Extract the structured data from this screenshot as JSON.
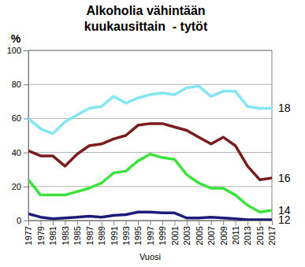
{
  "chart_data": {
    "type": "line",
    "title": "Alkoholia vähintään kuukausittain  - tytöt",
    "x_label": "Vuosi",
    "y_label": "%",
    "x": [
      1977,
      1979,
      1981,
      1983,
      1985,
      1987,
      1989,
      1991,
      1993,
      1995,
      1997,
      1999,
      2001,
      2003,
      2005,
      2007,
      2009,
      2011,
      2013,
      2015,
      2017
    ],
    "series": [
      {
        "name": "18",
        "color": "#84e6f2",
        "values": [
          60,
          54,
          51,
          58,
          62,
          66,
          67,
          73,
          69,
          72,
          74,
          75,
          74,
          78,
          79,
          73,
          76,
          76,
          67,
          66,
          66
        ]
      },
      {
        "name": "16",
        "color": "#7a1c1c",
        "values": [
          41,
          38,
          38,
          32,
          39,
          44,
          45,
          48,
          50,
          56,
          57,
          57,
          55,
          53,
          49,
          45,
          49,
          44,
          32,
          24,
          25
        ]
      },
      {
        "name": "14",
        "color": "#3de23d",
        "values": [
          24,
          15,
          15,
          15,
          17,
          19,
          22,
          28,
          29,
          35,
          39,
          37,
          36,
          27,
          22,
          19,
          19,
          15,
          9,
          5,
          6
        ]
      },
      {
        "name": "12",
        "color": "#1c1c78",
        "values": [
          4,
          2,
          1,
          1.5,
          2,
          2.5,
          2,
          3,
          3.5,
          5,
          5,
          4.5,
          4.5,
          1.5,
          1.5,
          2,
          1.5,
          1,
          0.5,
          0.5,
          0.5
        ]
      }
    ],
    "xlim": [
      1977,
      2017
    ],
    "xticks": [
      1977,
      1979,
      1981,
      1983,
      1985,
      1987,
      1989,
      1991,
      1993,
      1995,
      1997,
      1999,
      2001,
      2003,
      2005,
      2007,
      2009,
      2011,
      2013,
      2015,
      2017
    ],
    "ylim": [
      0,
      100
    ],
    "yticks": [
      0,
      20,
      40,
      60,
      80,
      100
    ],
    "grid": true
  }
}
